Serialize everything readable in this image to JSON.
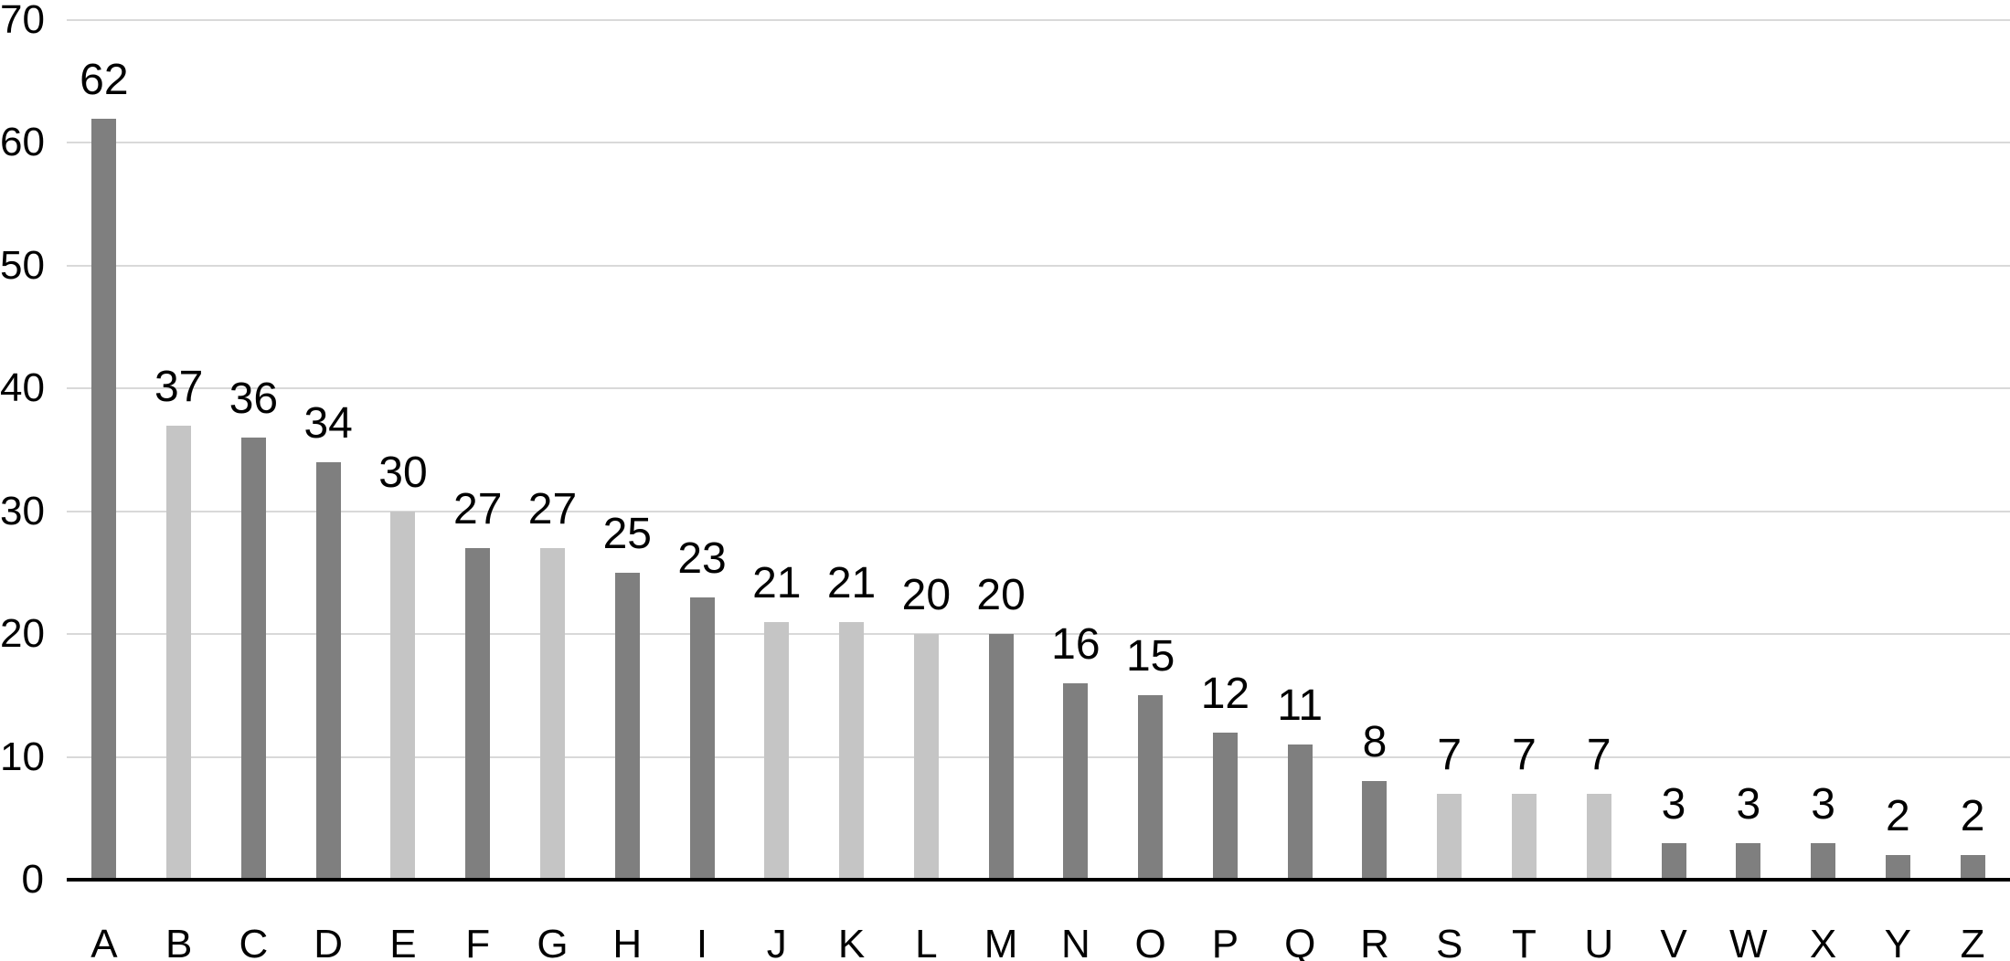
{
  "chart_data": {
    "type": "bar",
    "title": "",
    "xlabel": "",
    "ylabel": "",
    "categories": [
      "A",
      "B",
      "C",
      "D",
      "E",
      "F",
      "G",
      "H",
      "I",
      "J",
      "K",
      "L",
      "M",
      "N",
      "O",
      "P",
      "Q",
      "R",
      "S",
      "T",
      "U",
      "V",
      "W",
      "X",
      "Y",
      "Z"
    ],
    "values": [
      62,
      37,
      36,
      34,
      30,
      27,
      27,
      25,
      23,
      21,
      21,
      20,
      20,
      16,
      15,
      12,
      11,
      8,
      7,
      7,
      7,
      3,
      3,
      3,
      2,
      2
    ],
    "bar_shades": [
      "dark",
      "light",
      "dark",
      "dark",
      "light",
      "dark",
      "light",
      "dark",
      "dark",
      "light",
      "light",
      "light",
      "dark",
      "dark",
      "dark",
      "dark",
      "dark",
      "dark",
      "light",
      "light",
      "light",
      "dark",
      "dark",
      "dark",
      "dark",
      "dark"
    ],
    "value_labels_shown": true,
    "ylim": [
      0,
      70
    ],
    "yticks": [
      0,
      10,
      20,
      30,
      40,
      50,
      60,
      70
    ],
    "grid": "horizontal",
    "legend_position": "none",
    "colors": {
      "dark_bar": "#7f7f7f",
      "light_bar": "#c5c5c5",
      "gridline": "#d9d9d9",
      "axis": "#000000",
      "text": "#000000",
      "background": "#ffffff"
    }
  }
}
